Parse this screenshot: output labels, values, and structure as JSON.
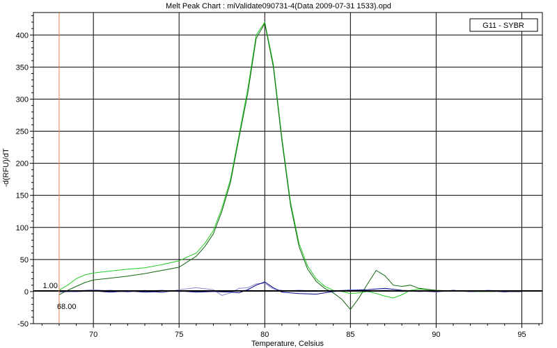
{
  "chart_data": {
    "type": "line",
    "title": "Melt Peak Chart : miValidate090731-4(Data 2009-07-31 1533).opd",
    "xlabel": "Temperature, Celsius",
    "ylabel": "-d(RFU)/dT",
    "xlim": [
      66.5,
      96.2
    ],
    "ylim": [
      -50,
      435
    ],
    "xticks": [
      70,
      75,
      80,
      85,
      90,
      95
    ],
    "yticks": [
      -50,
      0,
      50,
      100,
      150,
      200,
      250,
      300,
      350,
      400
    ],
    "grid": true,
    "legend": {
      "position": "top-right",
      "label": "G11 - SYBR"
    },
    "threshold": {
      "label": "1.00",
      "value": 1.0
    },
    "marker": {
      "label": "68.00",
      "x": 68.0,
      "color": "#e08050"
    },
    "series": [
      {
        "color": "#22cc22",
        "x": [
          68.0,
          68.5,
          69.0,
          69.5,
          70.0,
          71.0,
          72.0,
          73.0,
          74.0,
          75.0,
          76.0,
          76.5,
          77.0,
          77.5,
          78.0,
          78.5,
          79.0,
          79.5,
          80.0,
          80.5,
          81.0,
          81.5,
          82.0,
          82.5,
          83.0,
          83.5,
          84.0,
          84.5,
          85.0,
          85.5,
          86.0,
          86.5,
          87.0,
          87.5,
          88.0,
          88.5,
          89.0,
          90.0,
          91.0,
          92.0,
          93.0,
          94.0,
          95.0
        ],
        "y": [
          2,
          10,
          20,
          26,
          29,
          32,
          35,
          37,
          42,
          48,
          60,
          75,
          95,
          130,
          175,
          245,
          315,
          400,
          420,
          355,
          240,
          140,
          75,
          40,
          20,
          8,
          2,
          0,
          -3,
          -2,
          0,
          -3,
          -7,
          -10,
          -5,
          2,
          4,
          2,
          1,
          0,
          1,
          1,
          1
        ]
      },
      {
        "color": "#116611",
        "x": [
          68.0,
          68.5,
          69.0,
          69.5,
          70.0,
          71.0,
          72.0,
          73.0,
          74.0,
          75.0,
          76.0,
          76.5,
          77.0,
          77.5,
          78.0,
          78.5,
          79.0,
          79.5,
          80.0,
          80.5,
          81.0,
          81.5,
          82.0,
          82.5,
          83.0,
          83.5,
          84.0,
          84.5,
          85.0,
          85.5,
          86.0,
          86.5,
          87.0,
          87.5,
          88.0,
          88.5,
          89.0,
          90.0,
          91.0,
          92.0,
          93.0,
          94.0,
          95.0
        ],
        "y": [
          -5,
          2,
          8,
          14,
          18,
          21,
          24,
          28,
          33,
          38,
          55,
          70,
          90,
          125,
          170,
          240,
          308,
          395,
          418,
          350,
          235,
          135,
          70,
          35,
          16,
          5,
          -2,
          -12,
          -28,
          -10,
          12,
          33,
          25,
          10,
          8,
          10,
          5,
          2,
          1,
          0,
          0,
          0,
          0
        ]
      },
      {
        "color": "#8888cc",
        "x": [
          68.0,
          69.0,
          70.0,
          71.0,
          72.0,
          73.0,
          74.0,
          75.0,
          76.0,
          77.0,
          77.5,
          78.0,
          78.5,
          79.0,
          79.5,
          80.0,
          80.5,
          81.0,
          82.0,
          83.0,
          84.0,
          85.0,
          86.0,
          87.0,
          88.0,
          89.0,
          90.0,
          91.0,
          92.0,
          93.0,
          94.0,
          95.0
        ],
        "y": [
          -1,
          1,
          3,
          1,
          -1,
          2,
          -2,
          3,
          6,
          3,
          -6,
          -2,
          5,
          6,
          12,
          13,
          4,
          2,
          0,
          0,
          1,
          3,
          0,
          2,
          0,
          1,
          -1,
          2,
          0,
          1,
          -1,
          2
        ]
      },
      {
        "color": "#000088",
        "x": [
          68.0,
          69.0,
          70.0,
          71.0,
          72.0,
          73.0,
          74.0,
          75.0,
          76.0,
          77.0,
          78.0,
          78.5,
          79.0,
          79.5,
          80.0,
          80.5,
          81.0,
          82.0,
          83.0,
          84.0,
          85.0,
          86.0,
          87.0,
          88.0,
          89.0,
          90.0,
          91.0,
          92.0,
          93.0,
          94.0,
          95.0
        ],
        "y": [
          0,
          0,
          1,
          -1,
          1,
          -1,
          0,
          1,
          -1,
          0,
          -1,
          -2,
          3,
          10,
          15,
          6,
          -1,
          -3,
          -4,
          0,
          2,
          3,
          5,
          2,
          1,
          0,
          2,
          0,
          1,
          0,
          0
        ]
      },
      {
        "color": "#4444ee",
        "x": [
          68.0,
          69.0,
          70.0,
          71.0,
          72.0,
          73.0,
          74.0,
          75.0,
          76.0,
          77.0,
          78.0,
          79.0,
          80.0,
          81.0,
          82.0,
          83.0,
          84.0,
          85.0,
          86.0,
          87.0,
          88.0,
          89.0,
          90.0,
          91.0,
          92.0,
          93.0,
          94.0,
          95.0
        ],
        "y": [
          1,
          0,
          1,
          2,
          0,
          1,
          2,
          0,
          1,
          0,
          1,
          2,
          1,
          1,
          2,
          1,
          0,
          2,
          1,
          2,
          1,
          0,
          1,
          1,
          0,
          2,
          1,
          1
        ]
      }
    ]
  }
}
